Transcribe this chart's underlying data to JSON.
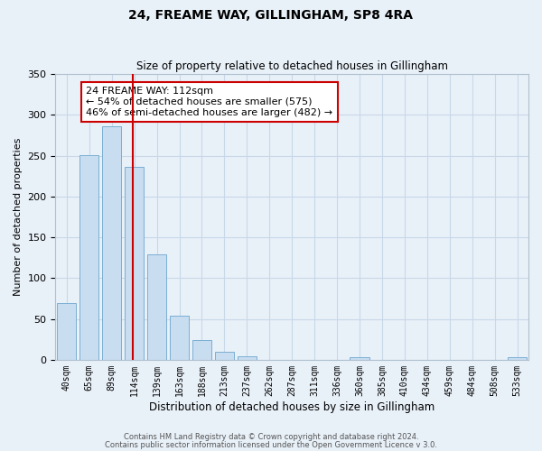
{
  "title": "24, FREAME WAY, GILLINGHAM, SP8 4RA",
  "subtitle": "Size of property relative to detached houses in Gillingham",
  "xlabel": "Distribution of detached houses by size in Gillingham",
  "ylabel": "Number of detached properties",
  "bar_labels": [
    "40sqm",
    "65sqm",
    "89sqm",
    "114sqm",
    "139sqm",
    "163sqm",
    "188sqm",
    "213sqm",
    "237sqm",
    "262sqm",
    "287sqm",
    "311sqm",
    "336sqm",
    "360sqm",
    "385sqm",
    "410sqm",
    "434sqm",
    "459sqm",
    "484sqm",
    "508sqm",
    "533sqm"
  ],
  "bar_values": [
    69,
    251,
    286,
    236,
    129,
    54,
    24,
    10,
    4,
    0,
    0,
    0,
    0,
    3,
    0,
    0,
    0,
    0,
    0,
    0,
    3
  ],
  "bar_color": "#c9ddf0",
  "bar_edge_color": "#7bafd4",
  "ylim": [
    0,
    350
  ],
  "yticks": [
    0,
    50,
    100,
    150,
    200,
    250,
    300,
    350
  ],
  "vline_index": 3,
  "vline_color": "#cc0000",
  "annotation_title": "24 FREAME WAY: 112sqm",
  "annotation_line1": "← 54% of detached houses are smaller (575)",
  "annotation_line2": "46% of semi-detached houses are larger (482) →",
  "annotation_box_color": "#ffffff",
  "annotation_box_edge": "#cc0000",
  "grid_color": "#c8d8e8",
  "background_color": "#e8f0f8",
  "footer1": "Contains HM Land Registry data © Crown copyright and database right 2024.",
  "footer2": "Contains public sector information licensed under the Open Government Licence v 3.0."
}
